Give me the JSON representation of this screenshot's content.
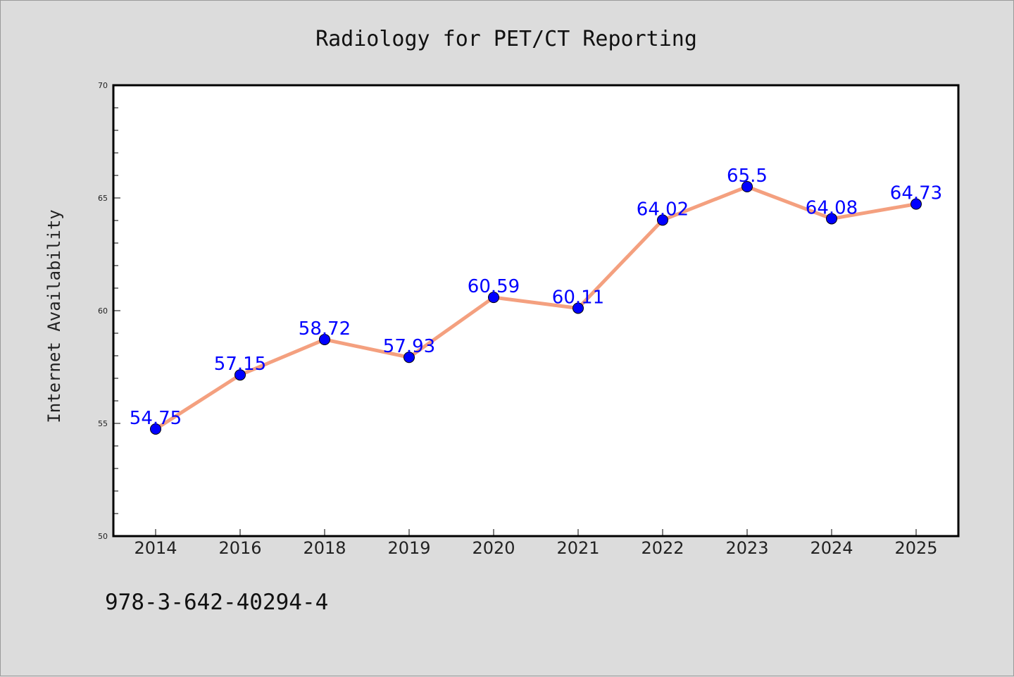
{
  "chart_data": {
    "type": "line",
    "title": "Radiology for PET/CT Reporting",
    "xlabel": "",
    "ylabel": "Internet Availability",
    "categories": [
      "2014",
      "2016",
      "2018",
      "2019",
      "2020",
      "2021",
      "2022",
      "2023",
      "2024",
      "2025"
    ],
    "series": [
      {
        "values": [
          54.75,
          57.15,
          58.72,
          57.93,
          60.59,
          60.11,
          64.02,
          65.5,
          64.08,
          64.73
        ],
        "labels": [
          "54.75",
          "57.15",
          "58.72",
          "57.93",
          "60.59",
          "60.11",
          "64.02",
          "65.5",
          "64.08",
          "64.73"
        ],
        "line_color": "#f4a07f",
        "marker_color": "#0000ff"
      }
    ],
    "ylim": [
      50,
      70
    ],
    "yticks": [
      "50",
      "55",
      "60",
      "65",
      "70"
    ],
    "grid": false,
    "legend": "none"
  },
  "footer": {
    "isbn": "978-3-642-40294-4"
  },
  "colors": {
    "background": "#dcdcdc",
    "plot_area": "#ffffff",
    "line": "#f4a07f",
    "marker": "#0000ff",
    "data_label": "#0000ff"
  }
}
